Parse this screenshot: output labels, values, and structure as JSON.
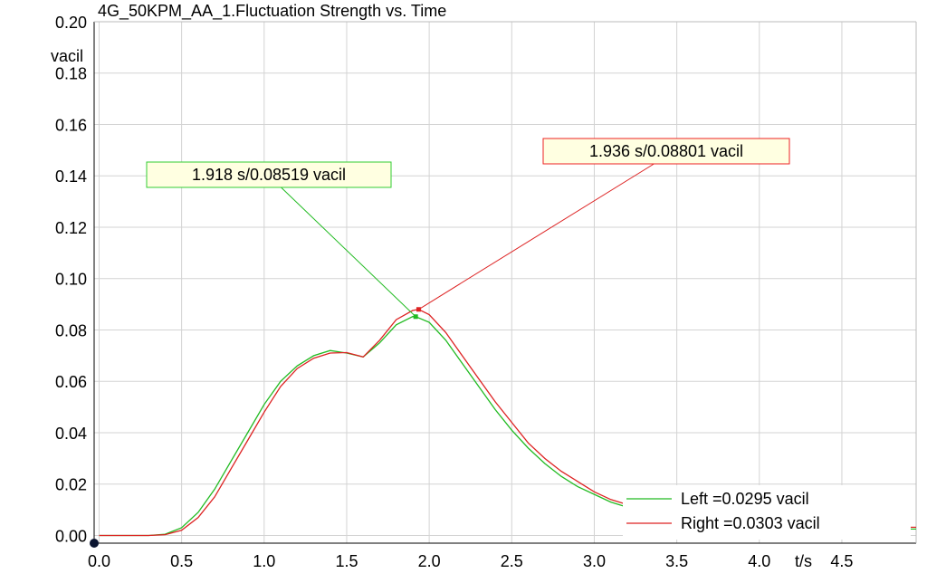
{
  "chart_data": {
    "type": "line",
    "title": "4G_50KPM_AA_1.Fluctuation Strength vs. Time",
    "xlabel": "t/s",
    "ylabel": "vacil",
    "xlim": [
      -0.03,
      4.95
    ],
    "ylim": [
      -0.003,
      0.2
    ],
    "x_ticks": [
      {
        "v": 0.0,
        "label": "0.0"
      },
      {
        "v": 0.5,
        "label": "0.5"
      },
      {
        "v": 1.0,
        "label": "1.0"
      },
      {
        "v": 1.5,
        "label": "1.5"
      },
      {
        "v": 2.0,
        "label": "2.0"
      },
      {
        "v": 2.5,
        "label": "2.5"
      },
      {
        "v": 3.0,
        "label": "3.0"
      },
      {
        "v": 3.5,
        "label": "3.5"
      },
      {
        "v": 4.0,
        "label": "4.0"
      },
      {
        "v": 4.5,
        "label": "4.5"
      }
    ],
    "y_ticks": [
      {
        "v": 0.0,
        "label": "0.00"
      },
      {
        "v": 0.02,
        "label": "0.02"
      },
      {
        "v": 0.04,
        "label": "0.04"
      },
      {
        "v": 0.06,
        "label": "0.06"
      },
      {
        "v": 0.08,
        "label": "0.08"
      },
      {
        "v": 0.1,
        "label": "0.10"
      },
      {
        "v": 0.12,
        "label": "0.12"
      },
      {
        "v": 0.14,
        "label": "0.14"
      },
      {
        "v": 0.16,
        "label": "0.16"
      },
      {
        "v": 0.18,
        "label": "0.18"
      },
      {
        "v": 0.2,
        "label": "0.20"
      }
    ],
    "grid": true,
    "legend_position": "bottom-right",
    "series": [
      {
        "name": "Left =0.0295 vacil",
        "color": "#22bb22",
        "x": [
          0.0,
          0.3,
          0.4,
          0.5,
          0.6,
          0.7,
          0.8,
          0.9,
          1.0,
          1.1,
          1.2,
          1.3,
          1.4,
          1.5,
          1.6,
          1.7,
          1.8,
          1.9,
          1.918,
          2.0,
          2.1,
          2.2,
          2.3,
          2.4,
          2.5,
          2.6,
          2.7,
          2.8,
          2.9,
          3.0,
          3.1,
          3.2,
          3.3,
          3.4,
          3.5
        ],
        "y": [
          0.0,
          0.0,
          0.0005,
          0.003,
          0.009,
          0.018,
          0.029,
          0.04,
          0.051,
          0.06,
          0.066,
          0.07,
          0.072,
          0.071,
          0.0695,
          0.075,
          0.082,
          0.0852,
          0.08519,
          0.083,
          0.076,
          0.067,
          0.058,
          0.049,
          0.041,
          0.034,
          0.028,
          0.023,
          0.019,
          0.016,
          0.013,
          0.011,
          0.009,
          0.0075,
          0.006
        ]
      },
      {
        "name": "Right =0.0303 vacil",
        "color": "#dd2222",
        "x": [
          0.0,
          0.3,
          0.4,
          0.5,
          0.6,
          0.7,
          0.8,
          0.9,
          1.0,
          1.1,
          1.2,
          1.3,
          1.4,
          1.5,
          1.6,
          1.7,
          1.8,
          1.9,
          1.936,
          2.0,
          2.1,
          2.2,
          2.3,
          2.4,
          2.5,
          2.6,
          2.7,
          2.8,
          2.9,
          3.0,
          3.1,
          3.2,
          3.3,
          3.4,
          3.5
        ],
        "y": [
          0.0,
          0.0,
          0.0003,
          0.002,
          0.007,
          0.015,
          0.026,
          0.037,
          0.048,
          0.058,
          0.065,
          0.069,
          0.071,
          0.0712,
          0.0695,
          0.076,
          0.084,
          0.0876,
          0.08801,
          0.086,
          0.079,
          0.07,
          0.061,
          0.052,
          0.044,
          0.036,
          0.03,
          0.025,
          0.021,
          0.017,
          0.014,
          0.012,
          0.01,
          0.008,
          0.0065
        ]
      }
    ],
    "annotations": [
      {
        "label": "1.918 s/0.08519 vacil",
        "x": 1.918,
        "y": 0.08519,
        "color": "#22bb22",
        "border": "#33cc33"
      },
      {
        "label": "1.936 s/0.08801 vacil",
        "x": 1.936,
        "y": 0.08801,
        "color": "#dd2222",
        "border": "#ee2222"
      }
    ]
  }
}
